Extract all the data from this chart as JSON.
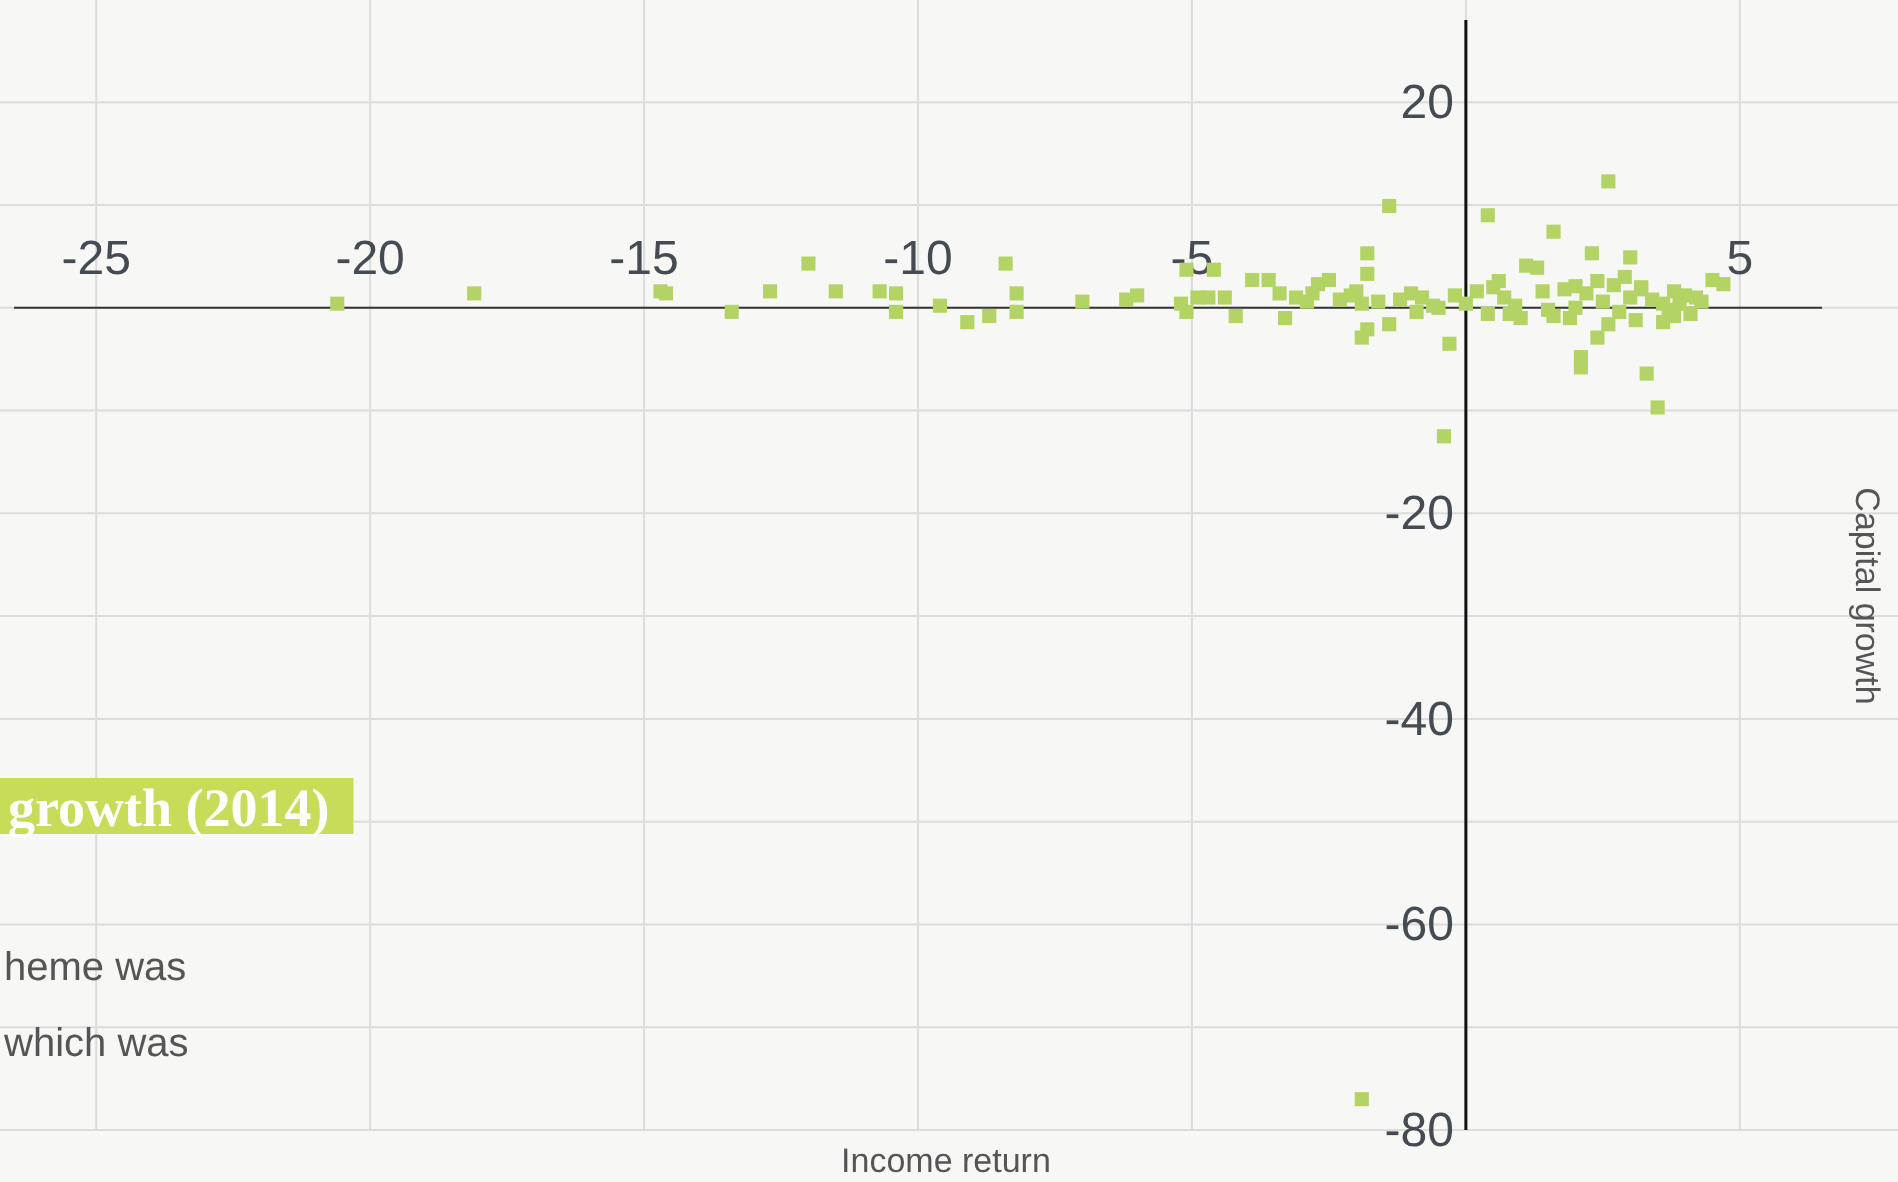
{
  "chart_data": {
    "type": "scatter",
    "title": "growth (2014)",
    "xlabel": "Income return",
    "ylabel": "Capital growth",
    "annotations": [
      "heme was",
      "which was"
    ],
    "xlim": [
      -26.5,
      6.5
    ],
    "xticks": [
      -25,
      -20,
      -15,
      -10,
      -5,
      {
        "value": 0,
        "label": null
      },
      5
    ],
    "ylim": [
      -80,
      28
    ],
    "yticks": [
      20,
      {
        "value": 10,
        "label": null
      },
      {
        "value": 0,
        "label": null
      },
      {
        "value": -10,
        "label": null
      },
      -20,
      {
        "value": -30,
        "label": null
      },
      -40,
      {
        "value": -50,
        "label": null
      },
      -60,
      {
        "value": -70,
        "label": null
      },
      -80
    ],
    "grid": true,
    "marker": "square",
    "series": [
      {
        "color": "#b3d465",
        "x": [
          -20.6,
          -18.1,
          -14.7,
          -14.6,
          -13.4,
          -12.7,
          -12.0,
          -11.5,
          -10.7,
          -10.4,
          -10.4,
          -9.6,
          -9.1,
          -8.7,
          -8.4,
          -8.2,
          -8.2,
          -7.0,
          -6.2,
          -6.0,
          -5.2,
          -5.1,
          -5.1,
          -4.9,
          -4.7,
          -4.6,
          -4.4,
          -4.2,
          -3.9,
          -3.6,
          -3.4,
          -3.3,
          -3.1,
          -2.9,
          -2.8,
          -2.7,
          -2.5,
          -2.3,
          -2.1,
          -1.9,
          -1.8,
          -1.8,
          -1.8,
          -1.6,
          -1.4,
          -1.4,
          -1.9,
          -1.2,
          -1.0,
          -0.8,
          -0.6,
          -0.4,
          -0.3,
          -0.2,
          0.0,
          0.2,
          0.4,
          0.4,
          0.5,
          0.7,
          0.9,
          1.1,
          1.3,
          1.4,
          1.6,
          1.6,
          1.8,
          2.0,
          2.0,
          2.1,
          2.1,
          2.2,
          2.3,
          2.4,
          2.5,
          2.6,
          2.7,
          2.8,
          3.0,
          3.0,
          3.1,
          3.2,
          3.3,
          3.4,
          3.5,
          3.6,
          3.7,
          3.8,
          3.9,
          4.0,
          4.1,
          4.2,
          4.3,
          4.5,
          4.7,
          -1.9,
          1.0,
          1.5,
          2.6,
          3.2,
          -0.9,
          0.6,
          1.9,
          2.9,
          3.8,
          -2.0,
          -0.5,
          0.8,
          2.4,
          3.6
        ],
        "values": [
          0.4,
          1.4,
          1.6,
          1.4,
          -0.4,
          1.6,
          4.3,
          1.6,
          1.6,
          1.4,
          -0.4,
          0.2,
          -1.4,
          -0.8,
          4.3,
          1.4,
          -0.4,
          0.6,
          0.8,
          1.2,
          0.4,
          3.7,
          -0.4,
          1.0,
          1.0,
          3.7,
          1.0,
          -0.8,
          2.7,
          2.7,
          1.4,
          -1.0,
          1.0,
          0.6,
          1.4,
          2.3,
          2.7,
          0.8,
          1.2,
          0.4,
          3.3,
          5.3,
          -2.1,
          0.6,
          9.9,
          -1.6,
          -2.9,
          0.8,
          1.4,
          1.0,
          0.2,
          -12.5,
          -3.5,
          1.2,
          0.4,
          1.6,
          9.0,
          -0.6,
          2.0,
          1.0,
          0.2,
          4.1,
          3.9,
          1.6,
          7.4,
          -0.8,
          1.8,
          2.1,
          0.0,
          -5.8,
          -4.8,
          1.4,
          5.3,
          -2.9,
          0.6,
          12.3,
          2.2,
          -0.4,
          4.9,
          1.0,
          -1.2,
          2.0,
          -6.4,
          0.8,
          -9.7,
          0.4,
          -0.2,
          1.6,
          0.4,
          1.2,
          -0.6,
          1.0,
          0.6,
          2.7,
          2.3,
          -77,
          -1.0,
          -0.2,
          -1.6,
          1.8,
          -0.4,
          2.6,
          -1.0,
          3.0,
          -0.8,
          1.6,
          0.0,
          -0.6,
          2.6,
          -1.4
        ]
      }
    ]
  }
}
